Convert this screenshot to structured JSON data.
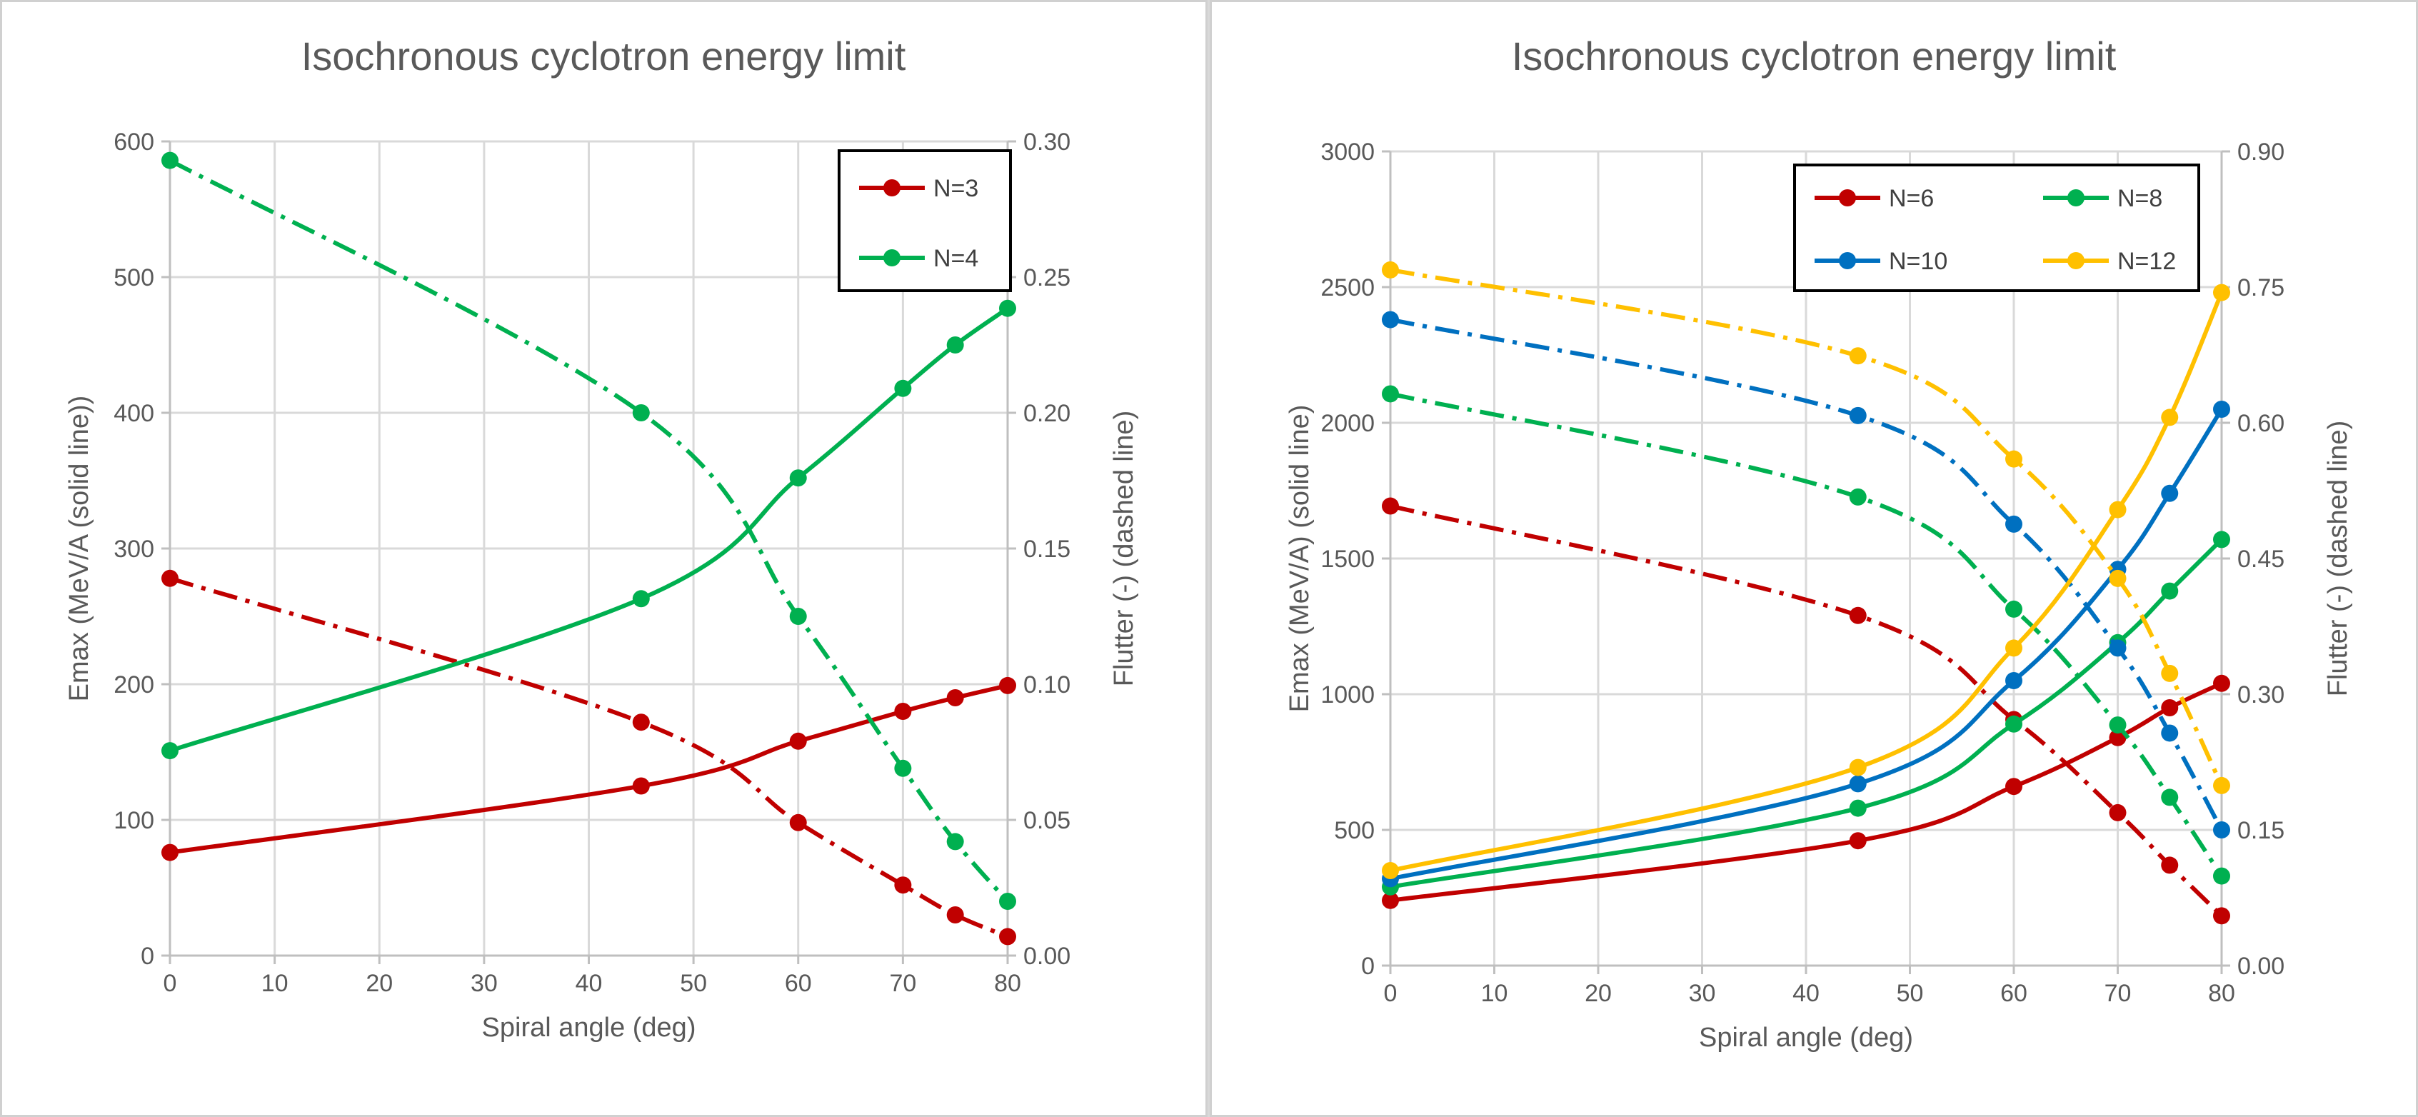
{
  "chart_data": [
    {
      "type": "line",
      "title": "Isochronous cyclotron energy limit",
      "xlabel": "Spiral angle (deg)",
      "ylabel": "Emax (MeV/A (solid line))",
      "y2label": "Flutter (-)  (dashed line)",
      "x_ticks": [
        0,
        10,
        20,
        30,
        40,
        50,
        60,
        70,
        80
      ],
      "xlim": [
        0,
        80
      ],
      "ylim": [
        0,
        600
      ],
      "y_ticks": [
        0,
        100,
        200,
        300,
        400,
        500,
        600
      ],
      "y2lim": [
        0,
        0.3
      ],
      "y2_ticks": [
        "0.00",
        "0.05",
        "0.10",
        "0.15",
        "0.20",
        "0.25",
        "0.30"
      ],
      "grid": true,
      "legend_position": "top-right",
      "x": [
        0,
        45,
        60,
        70,
        75,
        80
      ],
      "series": [
        {
          "name": "N=3",
          "color": "#c00000",
          "emax": [
            76,
            125,
            158,
            180,
            190,
            199
          ],
          "flutter": [
            0.139,
            0.086,
            0.049,
            0.026,
            0.015,
            0.007
          ]
        },
        {
          "name": "N=4",
          "color": "#00b050",
          "emax": [
            151,
            263,
            352,
            418,
            450,
            477
          ],
          "flutter": [
            0.293,
            0.2,
            0.125,
            0.069,
            0.042,
            0.02
          ]
        }
      ]
    },
    {
      "type": "line",
      "title": "Isochronous cyclotron energy limit",
      "xlabel": "Spiral angle (deg)",
      "ylabel": "Emax (MeV/A) (solid line)",
      "y2label": "Flutter (-)  (dashed line)",
      "x_ticks": [
        0,
        10,
        20,
        30,
        40,
        50,
        60,
        70,
        80
      ],
      "xlim": [
        0,
        80
      ],
      "ylim": [
        0,
        3000
      ],
      "y_ticks": [
        0,
        500,
        1000,
        1500,
        2000,
        2500,
        3000
      ],
      "y2lim": [
        0,
        0.9
      ],
      "y2_ticks": [
        "0.00",
        "0.15",
        "0.30",
        "0.45",
        "0.60",
        "0.75",
        "0.90"
      ],
      "grid": true,
      "legend_position": "top-center",
      "x": [
        0,
        45,
        60,
        70,
        75,
        80
      ],
      "series": [
        {
          "name": "N=6",
          "color": "#c00000",
          "emax": [
            240,
            460,
            660,
            840,
            950,
            1040
          ],
          "flutter": [
            0.508,
            0.387,
            0.272,
            0.169,
            0.111,
            0.055
          ]
        },
        {
          "name": "N=8",
          "color": "#00b050",
          "emax": [
            290,
            580,
            890,
            1190,
            1380,
            1570
          ],
          "flutter": [
            0.632,
            0.518,
            0.394,
            0.266,
            0.186,
            0.099
          ]
        },
        {
          "name": "N=10",
          "color": "#0070c0",
          "emax": [
            320,
            670,
            1050,
            1460,
            1740,
            2050
          ],
          "flutter": [
            0.714,
            0.608,
            0.488,
            0.351,
            0.257,
            0.15
          ]
        },
        {
          "name": "N=12",
          "color": "#ffc000",
          "emax": [
            350,
            730,
            1170,
            1680,
            2020,
            2480
          ],
          "flutter": [
            0.769,
            0.674,
            0.56,
            0.428,
            0.323,
            0.199
          ]
        }
      ]
    }
  ]
}
